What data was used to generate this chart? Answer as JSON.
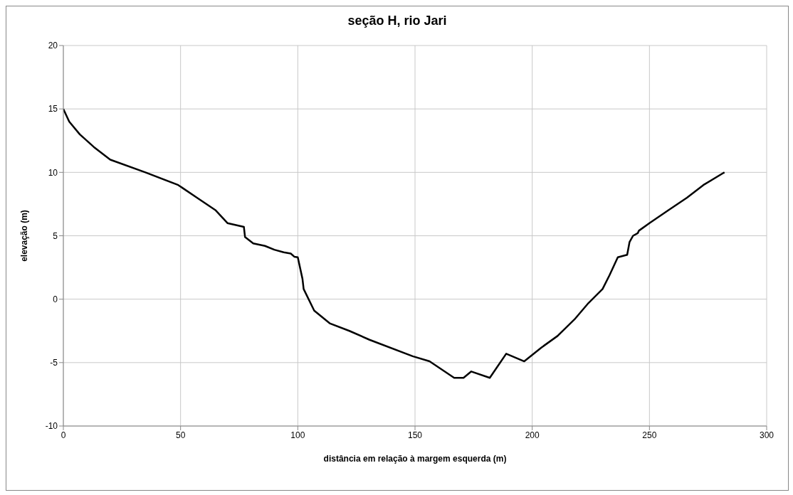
{
  "chart_data": {
    "type": "line",
    "title": "seção H, rio Jari",
    "xlabel": "distância em relação à margem esquerda (m)",
    "ylabel": "elevação (m)",
    "x": [
      0,
      2.5,
      7,
      13,
      20,
      35,
      49,
      57,
      65,
      70,
      77,
      77.5,
      81,
      86,
      90,
      94,
      97,
      98.5,
      100,
      102,
      102.5,
      107,
      113.6,
      122,
      130.6,
      149,
      156.2,
      166.7,
      170.7,
      174,
      181.9,
      188.9,
      196.6,
      204,
      210.8,
      218,
      224,
      230,
      233,
      236.5,
      240.5,
      241.5,
      243,
      245,
      245.5,
      250,
      258,
      266,
      273,
      282
    ],
    "series": [
      {
        "color": "#000000",
        "values": [
          15,
          14,
          13,
          12,
          11,
          10,
          9,
          8,
          7,
          6,
          5.7,
          4.9,
          4.4,
          4.2,
          3.9,
          3.7,
          3.6,
          3.35,
          3.3,
          1.6,
          0.8,
          -0.9,
          -1.9,
          -2.5,
          -3.2,
          -4.5,
          -4.9,
          -6.2,
          -6.2,
          -5.7,
          -6.2,
          -4.3,
          -4.9,
          -3.8,
          -2.9,
          -1.6,
          -0.3,
          0.8,
          1.9,
          3.3,
          3.5,
          4.5,
          5,
          5.2,
          5.4,
          6,
          7,
          8,
          9,
          10
        ]
      }
    ],
    "xlim": [
      0,
      300
    ],
    "xticks": [
      0,
      50,
      100,
      150,
      200,
      250,
      300
    ],
    "ylim": [
      -10,
      20
    ],
    "yticks": [
      -10,
      -5,
      0,
      5,
      10,
      15,
      20
    ],
    "grid": true,
    "legend": false,
    "marker": "none",
    "line_style": "solid"
  }
}
